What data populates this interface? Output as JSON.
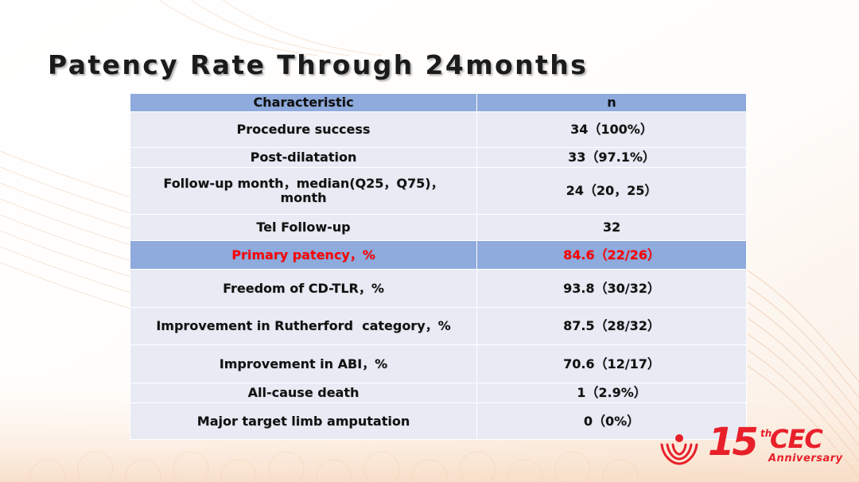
{
  "slide": {
    "title": "Patency Rate Through 24months"
  },
  "table": {
    "headers": {
      "characteristic": "Characteristic",
      "n": "n"
    },
    "rows": [
      {
        "label": "Procedure success",
        "value": "34（100%）"
      },
      {
        "label": "Post-dilatation",
        "value": "33（97.1%）"
      },
      {
        "label_line1": "Follow-up month，median(Q25，Q75)，",
        "label_line2": "month",
        "value": "24（20，25）"
      },
      {
        "label": "Tel Follow-up",
        "value": "32"
      },
      {
        "label": "Primary patency，%",
        "value": "84.6（22/26）"
      },
      {
        "label": "Freedom of CD-TLR，%",
        "value": "93.8（30/32）"
      },
      {
        "label": "Improvement in Rutherford  category，%",
        "value": "87.5（28/32）"
      },
      {
        "label": "Improvement in ABI，%",
        "value": "70.6（12/17）"
      },
      {
        "label": "All-cause death",
        "value": "1（2.9%）"
      },
      {
        "label": "Major target limb amputation",
        "value": "0（0%）"
      }
    ]
  },
  "logo": {
    "number": "15",
    "ordinal": "th",
    "name": "CEC",
    "subtitle": "Anniversary"
  },
  "colors": {
    "header_fill": "#8faadc",
    "row_fill": "#e8ebf4",
    "highlight_text": "#ff0000",
    "logo_red": "#e8202a"
  }
}
